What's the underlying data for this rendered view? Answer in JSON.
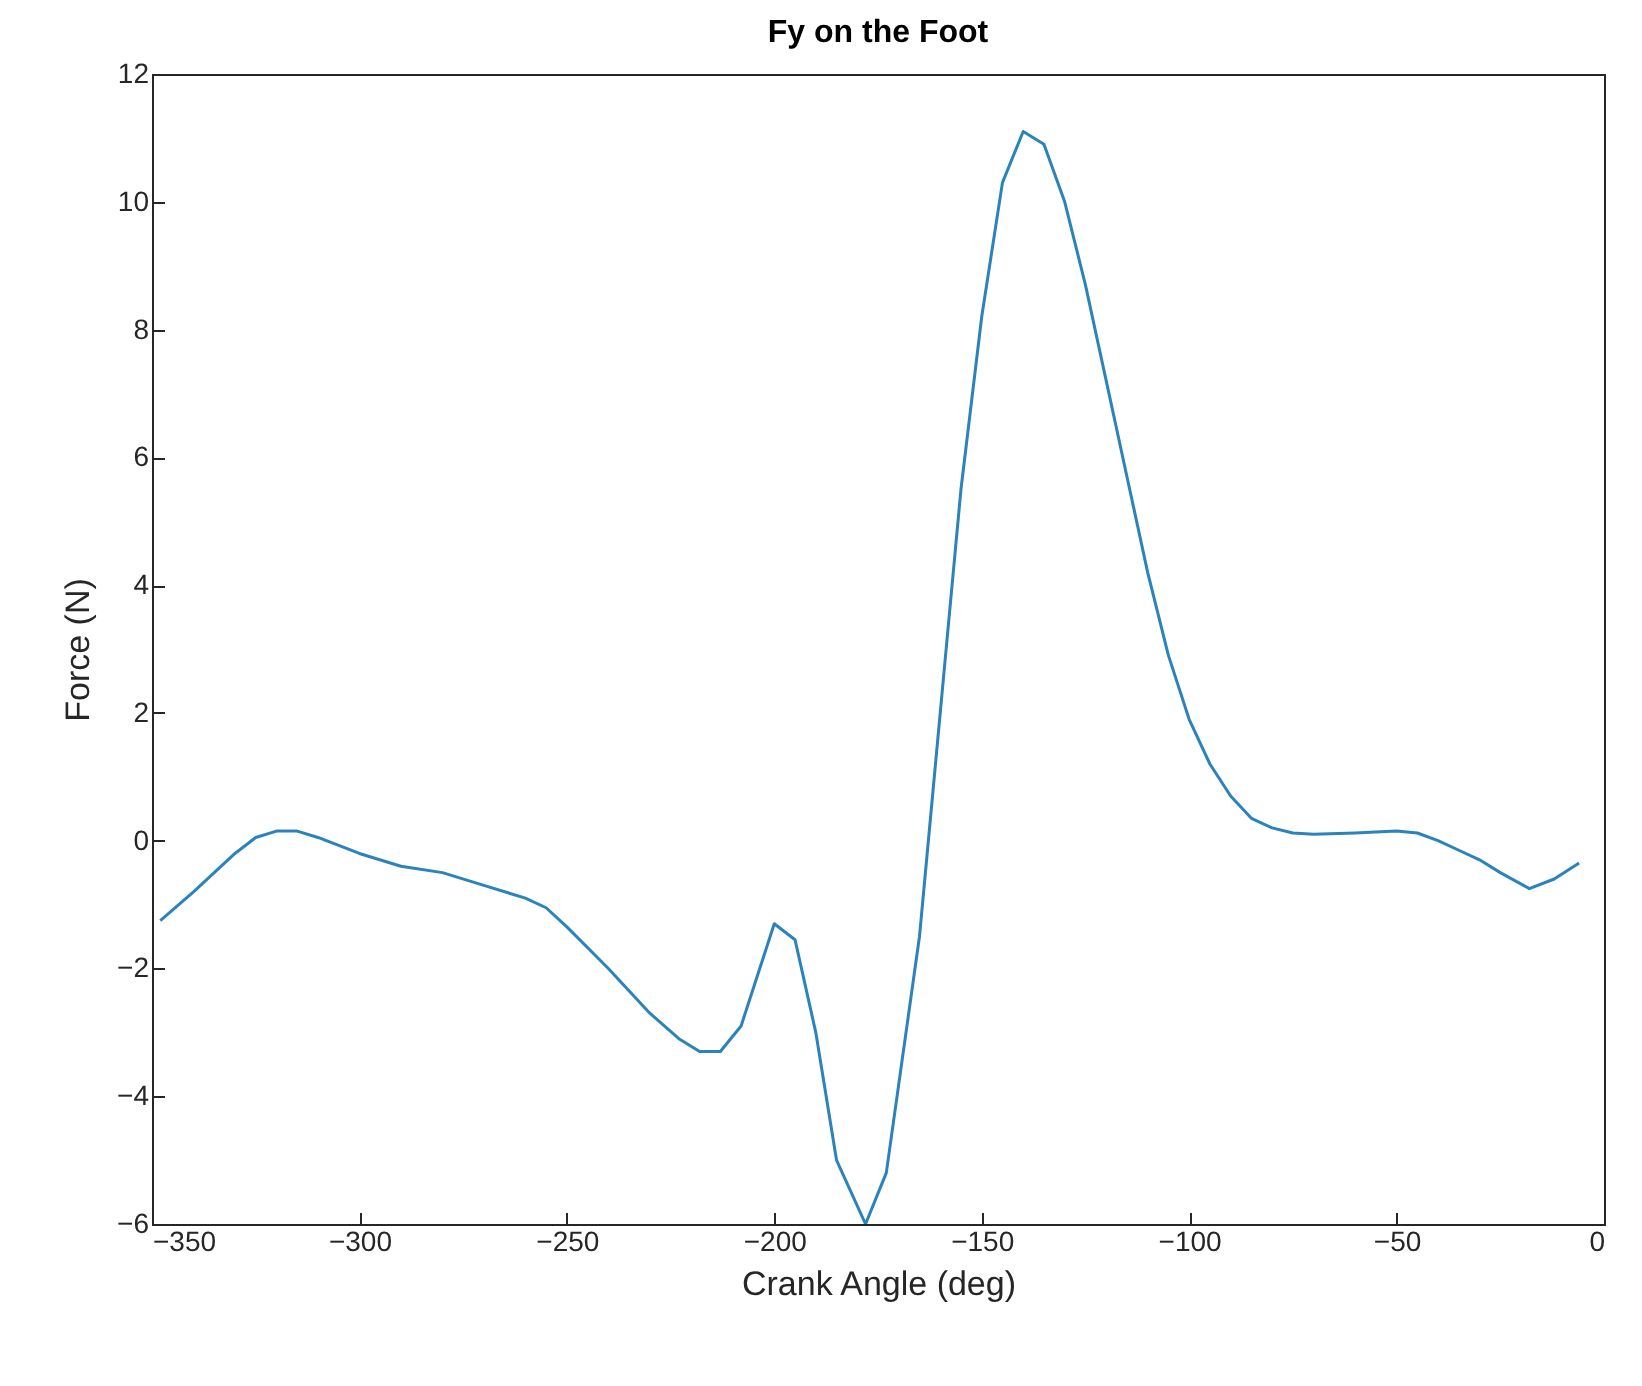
{
  "chart_data": {
    "type": "line",
    "title": "Fy on the Foot",
    "xlabel": "Crank Angle (deg)",
    "ylabel": "Force (N)",
    "xlim": [
      -350,
      0
    ],
    "xticks": [
      -350,
      -300,
      -250,
      -200,
      -150,
      -100,
      -50,
      0
    ],
    "ylim": [
      -6,
      12
    ],
    "yticks": [
      -6,
      -4,
      -2,
      0,
      2,
      4,
      6,
      8,
      10,
      12
    ],
    "grid": false,
    "x": [
      -348,
      -340,
      -330,
      -325,
      -320,
      -315,
      -310,
      -300,
      -290,
      -280,
      -270,
      -260,
      -255,
      -250,
      -240,
      -230,
      -223,
      -218,
      -213,
      -208,
      -200,
      -195,
      -190,
      -185,
      -178,
      -173,
      -165,
      -160,
      -155,
      -150,
      -145,
      -140,
      -135,
      -130,
      -125,
      -120,
      -115,
      -110,
      -105,
      -100,
      -95,
      -90,
      -85,
      -80,
      -75,
      -70,
      -60,
      -50,
      -45,
      -40,
      -35,
      -30,
      -25,
      -18,
      -12,
      -6
    ],
    "series": [
      {
        "color": "#2b83ba",
        "values": [
          -1.25,
          -0.8,
          -0.2,
          0.05,
          0.15,
          0.15,
          0.05,
          -0.2,
          -0.4,
          -0.5,
          -0.7,
          -0.9,
          -1.05,
          -1.35,
          -2.0,
          -2.7,
          -3.1,
          -3.3,
          -3.3,
          -2.9,
          -1.3,
          -1.55,
          -3.0,
          -5.0,
          -6.0,
          -5.2,
          -1.5,
          2.0,
          5.5,
          8.2,
          10.3,
          11.1,
          10.9,
          10.0,
          8.7,
          7.2,
          5.7,
          4.2,
          2.9,
          1.9,
          1.2,
          0.7,
          0.35,
          0.2,
          0.12,
          0.1,
          0.12,
          0.15,
          0.12,
          0.0,
          -0.15,
          -0.3,
          -0.5,
          -0.75,
          -0.6,
          -0.35
        ]
      }
    ]
  }
}
